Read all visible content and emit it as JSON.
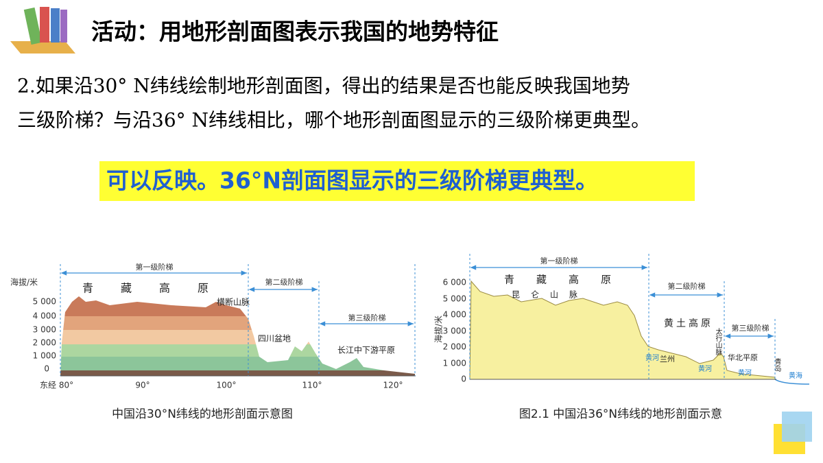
{
  "header": {
    "title": "活动：用地形剖面图表示我国的地势特征"
  },
  "question": {
    "lines": [
      "2.如果沿30° N纬线绘制地形剖面图，得出的结果是否也能反映我国地势",
      "三级阶梯？与沿36° N纬线相比，哪个地形剖面图显示的三级阶梯更典型。"
    ]
  },
  "answer": "可以反映。36°N剖面图显示的三级阶梯更典型。",
  "figures": [
    {
      "caption": "中国沿30°N纬线的地形剖面示意图",
      "y_label": "海拔/米",
      "y_ticks": [
        "5 000",
        "4 000",
        "3 000",
        "2 000",
        "1 000",
        "0"
      ],
      "x_ticks": [
        "东经 80°",
        "90°",
        "100°",
        "110°",
        "120°"
      ],
      "steps": [
        "第一级阶梯",
        "第二级阶梯",
        "第三级阶梯"
      ],
      "places": [
        "青藏高原",
        "横断山脉",
        "四川盆地",
        "长江中下游平原"
      ]
    },
    {
      "caption": "图2.1 中国沿36°N纬线的地形剖面示意",
      "y_label": "海拔/米",
      "y_ticks": [
        "6 000",
        "5 000",
        "4 000",
        "3 000",
        "2 000",
        "1 000",
        "0"
      ],
      "steps": [
        "第一级阶梯",
        "第二级阶梯",
        "第三级阶梯"
      ],
      "places": [
        "青藏高原",
        "昆仑山脉",
        "黄土高原",
        "太行山脉",
        "黄河",
        "兰州",
        "黄河",
        "华北平原",
        "黄河",
        "青岛",
        "黄海"
      ]
    }
  ]
}
